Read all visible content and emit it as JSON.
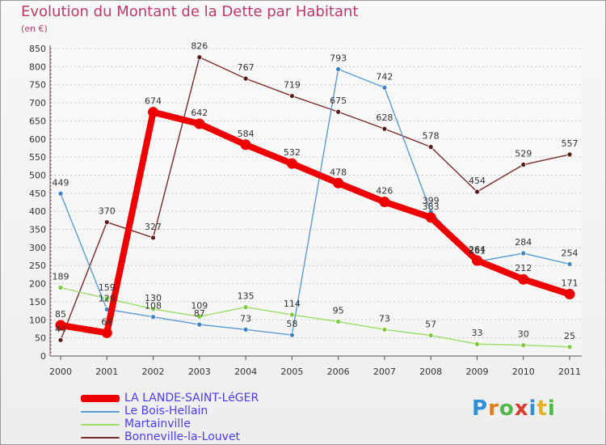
{
  "title": "Evolution du Montant de la Dette par Habitant",
  "subtitle": "(en €)",
  "chart_data": {
    "type": "line",
    "title": "Evolution du Montant de la Dette par Habitant",
    "ylabel": "(en €)",
    "xlabel": "",
    "ylim": [
      0,
      850
    ],
    "yticks": [
      0,
      50,
      100,
      150,
      200,
      250,
      300,
      350,
      400,
      450,
      500,
      550,
      600,
      650,
      700,
      750,
      800,
      850
    ],
    "grid": true,
    "categories": [
      "2000",
      "2001",
      "2002",
      "2003",
      "2004",
      "2005",
      "2006",
      "2007",
      "2008",
      "2009",
      "2010",
      "2011"
    ],
    "series": [
      {
        "name": "LA LANDE-SAINT-LéGER",
        "color": "#ee0000",
        "values": [
          85,
          64,
          674,
          642,
          584,
          532,
          478,
          426,
          383,
          264,
          212,
          171
        ]
      },
      {
        "name": "Le Bois-Hellain",
        "color": "#5b9bd5",
        "values": [
          449,
          129,
          108,
          87,
          73,
          58,
          793,
          742,
          399,
          261,
          284,
          254
        ]
      },
      {
        "name": "Martainville",
        "color": "#99dd66",
        "values": [
          189,
          159,
          130,
          109,
          135,
          114,
          95,
          73,
          57,
          33,
          30,
          25
        ]
      },
      {
        "name": "Bonneville-la-Louvet",
        "color": "#7a2b2b",
        "values": [
          44,
          370,
          327,
          826,
          767,
          719,
          675,
          628,
          578,
          454,
          529,
          557
        ]
      }
    ]
  },
  "brand": {
    "letters": [
      "P",
      "r",
      "o",
      "x",
      "i",
      "t",
      "i"
    ],
    "colors": [
      "#2f8fd8",
      "#e07a1f",
      "#4fb84a",
      "#d83b2c",
      "#2f8fd8",
      "#e8b21f",
      "#4fb84a"
    ]
  }
}
